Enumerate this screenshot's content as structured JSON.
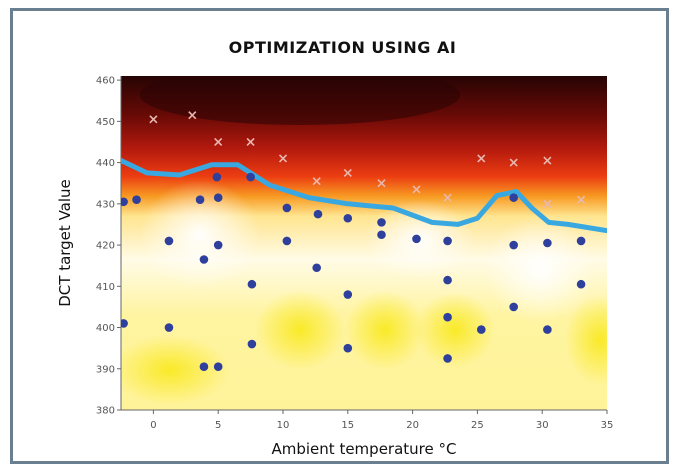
{
  "chart_data": {
    "type": "scatter",
    "title": "OPTIMIZATION USING AI",
    "xlabel": "Ambient temperature °C",
    "ylabel": "DCT target Value",
    "xlim": [
      -2.5,
      35
    ],
    "ylim": [
      380,
      461
    ],
    "x_ticks": [
      0,
      5,
      10,
      15,
      20,
      25,
      30,
      35
    ],
    "y_ticks": [
      380,
      390,
      400,
      410,
      420,
      430,
      440,
      450,
      460
    ],
    "background": "heatmap from yellow/white (low) to red/black (high)",
    "grid": false,
    "colors": {
      "dots": "#2e3f9c",
      "cross_markers": "#e8b8b0",
      "boundary_curve": "#3aa8e0",
      "heat_low": "#fff7a0",
      "heat_mid": "#f05a10",
      "heat_high": "#260404"
    },
    "series": [
      {
        "marker": "dot",
        "points": [
          [
            -2.3,
            430.5
          ],
          [
            -1.3,
            431
          ],
          [
            1.2,
            421
          ],
          [
            3.6,
            431
          ],
          [
            3.9,
            416.5
          ],
          [
            4.9,
            436.5
          ],
          [
            5.0,
            431.5
          ],
          [
            5.0,
            420
          ],
          [
            7.5,
            436.5
          ],
          [
            7.6,
            410.5
          ],
          [
            10.3,
            429
          ],
          [
            10.3,
            421
          ],
          [
            12.7,
            427.5
          ],
          [
            12.6,
            414.5
          ],
          [
            15.0,
            426.5
          ],
          [
            15.0,
            408
          ],
          [
            17.6,
            425.5
          ],
          [
            17.6,
            422.5
          ],
          [
            20.3,
            421.5
          ],
          [
            22.7,
            421
          ],
          [
            22.7,
            411.5
          ],
          [
            22.7,
            402.5
          ],
          [
            27.8,
            431.5
          ],
          [
            27.8,
            420
          ],
          [
            30.4,
            420.5
          ],
          [
            33.0,
            421
          ],
          [
            33.0,
            410.5
          ],
          [
            -2.3,
            401
          ],
          [
            1.2,
            400
          ],
          [
            7.6,
            396
          ],
          [
            15.0,
            395
          ],
          [
            22.7,
            392.5
          ],
          [
            25.3,
            399.5
          ],
          [
            27.8,
            405
          ],
          [
            30.4,
            399.5
          ],
          [
            3.9,
            390.5
          ],
          [
            5.0,
            390.5
          ]
        ]
      },
      {
        "marker": "cross",
        "points": [
          [
            0.0,
            450.5
          ],
          [
            3.0,
            451.5
          ],
          [
            5.0,
            445
          ],
          [
            7.5,
            445
          ],
          [
            10.0,
            441
          ],
          [
            12.6,
            435.5
          ],
          [
            15.0,
            437.5
          ],
          [
            17.6,
            435
          ],
          [
            20.3,
            433.5
          ],
          [
            22.7,
            431.5
          ],
          [
            25.3,
            441
          ],
          [
            27.8,
            440
          ],
          [
            30.4,
            440.5
          ],
          [
            30.4,
            430
          ],
          [
            33.0,
            431
          ]
        ]
      },
      {
        "marker": "line",
        "name": "",
        "points": [
          [
            -2.5,
            440.5
          ],
          [
            -0.5,
            437.5
          ],
          [
            2.0,
            437
          ],
          [
            4.5,
            439.5
          ],
          [
            6.5,
            439.5
          ],
          [
            9.0,
            434.5
          ],
          [
            12.0,
            431.5
          ],
          [
            15.0,
            430
          ],
          [
            18.5,
            429
          ],
          [
            21.5,
            425.5
          ],
          [
            23.5,
            425
          ],
          [
            25.0,
            426.5
          ],
          [
            26.5,
            432
          ],
          [
            28.0,
            433
          ],
          [
            29.2,
            429
          ],
          [
            30.5,
            425.5
          ],
          [
            32.0,
            425
          ],
          [
            35.0,
            423.5
          ]
        ]
      }
    ]
  }
}
